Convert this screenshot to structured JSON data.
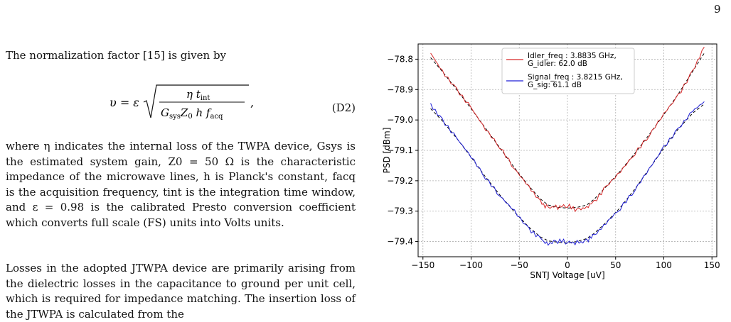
{
  "page_number": "9",
  "text": {
    "intro": "The normalization factor [15] is given by",
    "equation": {
      "lhs": "υ = ε",
      "numerator": "η t",
      "numerator_sub": "int",
      "denominator": "G",
      "denominator_sub": "sys",
      "denominator_rest": "Z",
      "denominator_rest_sub": "0",
      "denominator_tail": " h f",
      "denominator_tail_sub": "acq",
      "trailing": ",",
      "number": "(D2)"
    },
    "where_paragraph": "where η indicates the internal loss of the TWPA device, Gsys is the estimated system gain, Z0 = 50 Ω is the characteristic impedance of the microwave lines, h is Planck's constant, facq is the acquisition frequency, tint is the integration time window, and ε = 0.98 is the calibrated Presto conversion coefficient which converts full scale (FS) units into Volts units.",
    "losses_paragraph": "Losses in the adopted JTWPA device are primarily arising from the dielectric losses in the capacitance to ground per unit cell, which is required for impedance matching. The insertion loss of the JTWPA is calculated from the"
  },
  "chart_data": {
    "type": "line",
    "xlabel": "SNTJ Voltage [uV]",
    "ylabel": "PSD [dBm]",
    "xlim": [
      -155,
      155
    ],
    "ylim": [
      -79.45,
      -78.75
    ],
    "xticks": [
      -150,
      -100,
      -50,
      0,
      50,
      100,
      150
    ],
    "yticks": [
      -78.8,
      -78.9,
      -79.0,
      -79.1,
      -79.2,
      -79.3,
      -79.4
    ],
    "grid": true,
    "legend_position": "top-center",
    "series": [
      {
        "name": "Idler_freq : 3.8835 GHz, G_idler: 62.0 dB",
        "color": "#d62728",
        "x": [
          -142,
          -130,
          -115,
          -100,
          -85,
          -70,
          -55,
          -40,
          -28,
          -20,
          -10,
          0,
          10,
          20,
          28,
          40,
          55,
          70,
          85,
          100,
          115,
          130,
          142
        ],
        "y": [
          -78.78,
          -78.84,
          -78.9,
          -78.96,
          -79.03,
          -79.09,
          -79.16,
          -79.22,
          -79.27,
          -79.28,
          -79.29,
          -79.29,
          -79.29,
          -79.28,
          -79.27,
          -79.22,
          -79.17,
          -79.11,
          -79.05,
          -78.98,
          -78.92,
          -78.84,
          -78.76
        ]
      },
      {
        "name": "Signal_freq : 3.8215 GHz, G_sig: 61.1 dB",
        "color": "#1f1fd6",
        "x": [
          -142,
          -130,
          -115,
          -100,
          -85,
          -70,
          -55,
          -40,
          -28,
          -20,
          -10,
          0,
          10,
          20,
          28,
          40,
          55,
          70,
          85,
          100,
          115,
          130,
          142
        ],
        "y": [
          -78.95,
          -79.0,
          -79.06,
          -79.12,
          -79.19,
          -79.25,
          -79.3,
          -79.36,
          -79.39,
          -79.4,
          -79.4,
          -79.41,
          -79.4,
          -79.39,
          -79.38,
          -79.34,
          -79.29,
          -79.23,
          -79.16,
          -79.09,
          -79.03,
          -78.97,
          -78.94
        ]
      }
    ]
  }
}
